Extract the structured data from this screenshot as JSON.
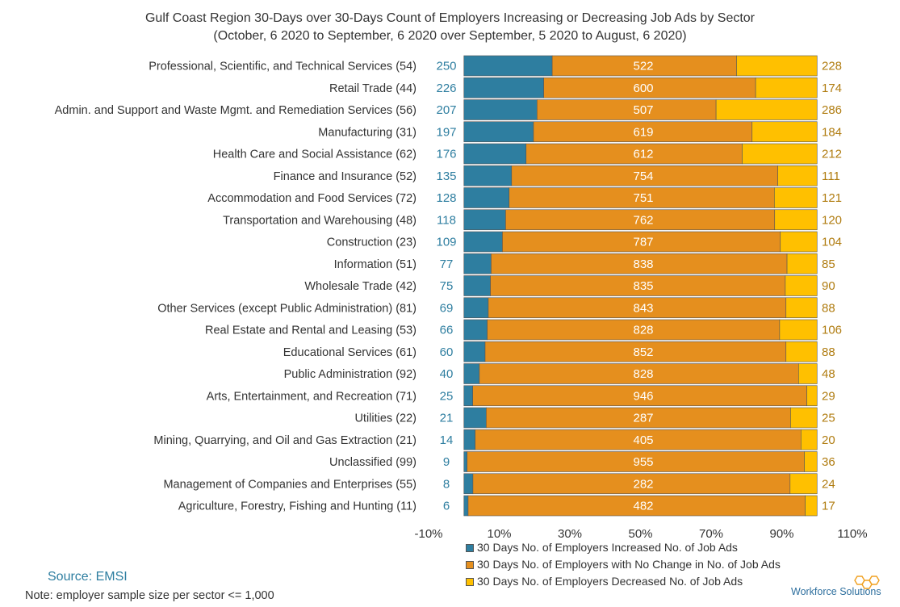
{
  "title_line1": "Gulf Coast Region 30-Days over 30-Days Count of Employers Increasing or Decreasing Job Ads by Sector",
  "title_line2": "(October, 6 2020 to September, 6 2020 over September, 5 2020 to August, 6 2020)",
  "source": "Source: EMSI",
  "note": "Note: employer sample size per sector <= 1,000",
  "logo_text": "Workforce Solutions",
  "colors": {
    "increased": "#2e7ea0",
    "no_change": "#e58f1e",
    "decreased": "#ffc000"
  },
  "chart_data": {
    "type": "bar",
    "orientation": "horizontal",
    "stacked": "percent",
    "title": "Gulf Coast Region 30-Days over 30-Days Count of Employers Increasing or Decreasing Job Ads by Sector",
    "subtitle": "(October, 6 2020 to September, 6 2020 over September, 5 2020 to August, 6 2020)",
    "x_ticks": [
      "-10%",
      "10%",
      "30%",
      "50%",
      "70%",
      "90%",
      "110%"
    ],
    "xlim": [
      -10,
      110
    ],
    "legend_position": "bottom",
    "categories": [
      "Professional, Scientific, and Technical Services (54)",
      "Retail Trade (44)",
      "Admin. and Support and Waste Mgmt. and Remediation Services (56)",
      "Manufacturing (31)",
      "Health Care and Social Assistance (62)",
      "Finance and Insurance (52)",
      "Accommodation and Food Services (72)",
      "Transportation and Warehousing (48)",
      "Construction (23)",
      "Information (51)",
      "Wholesale Trade (42)",
      "Other Services (except Public Administration) (81)",
      "Real Estate and Rental and Leasing (53)",
      "Educational Services (61)",
      "Public Administration (92)",
      "Arts, Entertainment, and Recreation (71)",
      "Utilities (22)",
      "Mining, Quarrying, and Oil and Gas Extraction (21)",
      "Unclassified (99)",
      "Management of Companies and Enterprises (55)",
      "Agriculture, Forestry, Fishing and Hunting (11)"
    ],
    "series": [
      {
        "name": "30 Days No. of Employers Increased No. of Job Ads",
        "values": [
          250,
          226,
          207,
          197,
          176,
          135,
          128,
          118,
          109,
          77,
          75,
          69,
          66,
          60,
          40,
          25,
          21,
          14,
          9,
          8,
          6
        ]
      },
      {
        "name": "30 Days No. of Employers with No Change in No. of Job Ads",
        "values": [
          522,
          600,
          507,
          619,
          612,
          754,
          751,
          762,
          787,
          838,
          835,
          843,
          828,
          852,
          828,
          946,
          287,
          405,
          955,
          282,
          482
        ]
      },
      {
        "name": "30 Days No. of Employers Decreased No. of Job Ads",
        "values": [
          228,
          174,
          286,
          184,
          212,
          111,
          121,
          120,
          104,
          85,
          90,
          88,
          106,
          88,
          48,
          29,
          25,
          20,
          36,
          24,
          17
        ]
      }
    ]
  }
}
